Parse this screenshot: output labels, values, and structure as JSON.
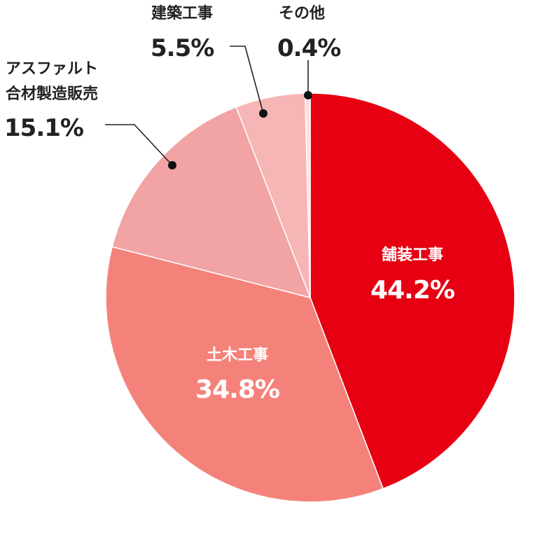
{
  "chart_data": {
    "type": "pie",
    "slices": [
      {
        "label": "舗装工事",
        "value": 44.2,
        "display": "44.2%",
        "color": "#e60012",
        "label_position": "inside"
      },
      {
        "label": "土木工事",
        "value": 34.8,
        "display": "34.8%",
        "color": "#f5827a",
        "label_position": "inside"
      },
      {
        "label": "アスファルト合材製造販売",
        "label_lines": [
          "アスファルト",
          "合材製造販売"
        ],
        "value": 15.1,
        "display": "15.1%",
        "color": "#f2a3a3",
        "label_position": "outside"
      },
      {
        "label": "建築工事",
        "value": 5.5,
        "display": "5.5%",
        "color": "#f6b6b5",
        "label_position": "outside"
      },
      {
        "label": "その他",
        "value": 0.4,
        "display": "0.4%",
        "color": "#fbe0df",
        "label_position": "outside"
      }
    ],
    "start": "top",
    "direction": "clockwise",
    "legend": "none"
  }
}
